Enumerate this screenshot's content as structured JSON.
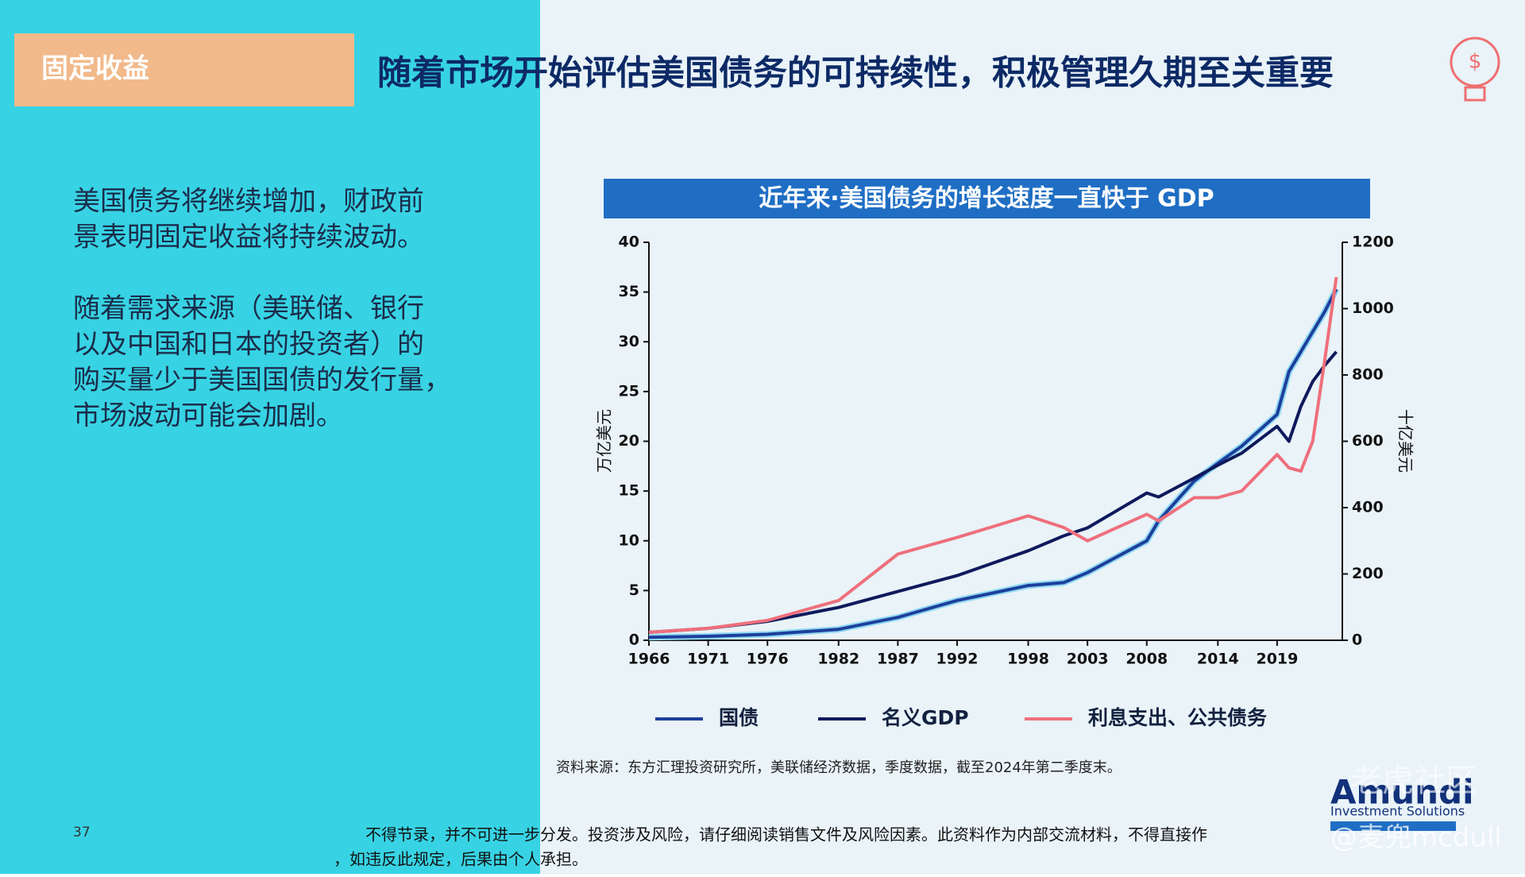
{
  "slide": {
    "section_label": "固定收益",
    "headline": "随着市场开始评估美国债务的可持续性，积极管理久期至关重要",
    "paragraphs": [
      [
        "美国债务将继续增加，财政前",
        "景表明固定收益将持续波动。"
      ],
      [
        "随着需求来源（美联储、银行",
        "以及中国和日本的投资者）的",
        "购买量少于美国国债的发行量，",
        "市场波动可能会加剧。"
      ]
    ],
    "source": "资料来源：东方汇理投资研究所，美联储经济数据，季度数据，截至2024年第二季度末。",
    "page_number": "37",
    "disclaimer": [
      "不得节录，并不可进一步分发。投资涉及风险，请仔细阅读销售文件及风险因素。此资料作为内部交流材料，不得直接作",
      "，如违反此规定，后果由个人承担。"
    ],
    "logo": "Amundi",
    "logo_sub": "Investment Solutions",
    "watermark": [
      "老虎社区",
      "@麦兜mcdull"
    ]
  },
  "chart_data": {
    "type": "line",
    "title": "近年来·美国债务的增长速度一直快于 GDP",
    "y_label": "万亿美元",
    "y2_label": "十亿美元",
    "x": [
      1966,
      1971,
      1976,
      1982,
      1987,
      1992,
      1998,
      2001,
      2003,
      2008,
      2009,
      2012,
      2014,
      2016,
      2019,
      2020,
      2021,
      2022,
      2023,
      2024
    ],
    "xlim": [
      1966,
      2024.5
    ],
    "xticks": [
      1966,
      1971,
      1976,
      1982,
      1987,
      1992,
      1998,
      2003,
      2008,
      2014,
      2019
    ],
    "ylim": [
      0,
      40
    ],
    "yticks": [
      0,
      5,
      10,
      15,
      20,
      25,
      30,
      35,
      40
    ],
    "y2lim": [
      0,
      1200
    ],
    "y2ticks": [
      0,
      200,
      400,
      600,
      800,
      1000,
      1200
    ],
    "series": [
      {
        "name": "国债",
        "color": "#1d3f9c",
        "values": [
          0.3,
          0.4,
          0.6,
          1.1,
          2.3,
          4.0,
          5.5,
          5.8,
          6.8,
          10,
          12,
          16,
          17.8,
          19.5,
          22.7,
          27,
          29,
          31,
          33,
          35.3
        ]
      },
      {
        "name": "名义GDP",
        "color": "#0e1a5c",
        "values": [
          0.8,
          1.2,
          1.9,
          3.3,
          4.9,
          6.5,
          9.0,
          10.5,
          11.3,
          14.8,
          14.4,
          16.3,
          17.6,
          18.8,
          21.5,
          20.0,
          23.5,
          26,
          27.6,
          29.0
        ]
      },
      {
        "name": "利息支出、公共债务",
        "color": "#ef6f7c",
        "axis": "y2",
        "values": [
          24,
          36,
          60,
          120,
          260,
          310,
          375,
          340,
          300,
          380,
          360,
          430,
          430,
          450,
          560,
          520,
          510,
          600,
          840,
          1095
        ]
      }
    ]
  }
}
